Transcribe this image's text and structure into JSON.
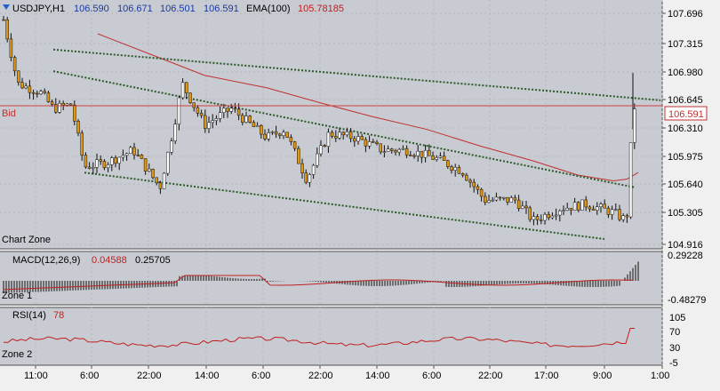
{
  "header": {
    "symbol": "USDJPY,H1",
    "open": "106.590",
    "high": "106.671",
    "low": "106.501",
    "close": "106.591",
    "ema_label": "EMA(100)",
    "ema_value": "105.78185"
  },
  "labels": {
    "bid": "Bid",
    "bid_price": "106.591",
    "chart_zone": "Chart Zone",
    "zone1": "Zone 1",
    "zone2": "Zone 2"
  },
  "price_axis": [
    "107.696",
    "107.315",
    "106.980",
    "106.645",
    "106.310",
    "105.975",
    "105.640",
    "105.305",
    "104.916"
  ],
  "macd": {
    "label": "MACD(12,26,9)",
    "signal": "0.04588",
    "main": "0.25705",
    "axis": [
      "0.29228",
      "-0.48279"
    ]
  },
  "rsi": {
    "label": "RSI(14)",
    "value": "78",
    "axis": [
      "105",
      "70",
      "30",
      "-5"
    ]
  },
  "time_axis": [
    "11:00",
    "6:00",
    "22:00",
    "14:00",
    "6:00",
    "22:00",
    "14:00",
    "6:00",
    "22:00",
    "17:00",
    "9:00",
    "1:00"
  ],
  "colors": {
    "background": "#c8cbd1",
    "candle_up": "#ffffff",
    "candle_down": "#e0960f",
    "ema": "#c03030",
    "channel": "#2a5a28",
    "bid_line": "#d04040",
    "macd_signal": "#c02020",
    "rsi_line": "#c02020"
  },
  "chart_data": {
    "type": "candlestick",
    "title": "USDJPY,H1",
    "ylim": [
      104.916,
      107.696
    ],
    "ema100_last": 105.78185,
    "bid": 106.591,
    "ohlc_last": {
      "open": 106.59,
      "high": 106.671,
      "low": 106.501,
      "close": 106.591
    },
    "trendlines": [
      {
        "from": 107.26,
        "to": 106.65
      },
      {
        "from": 107.0,
        "to": 105.6
      },
      {
        "from": 105.78,
        "to": 104.98
      }
    ]
  }
}
